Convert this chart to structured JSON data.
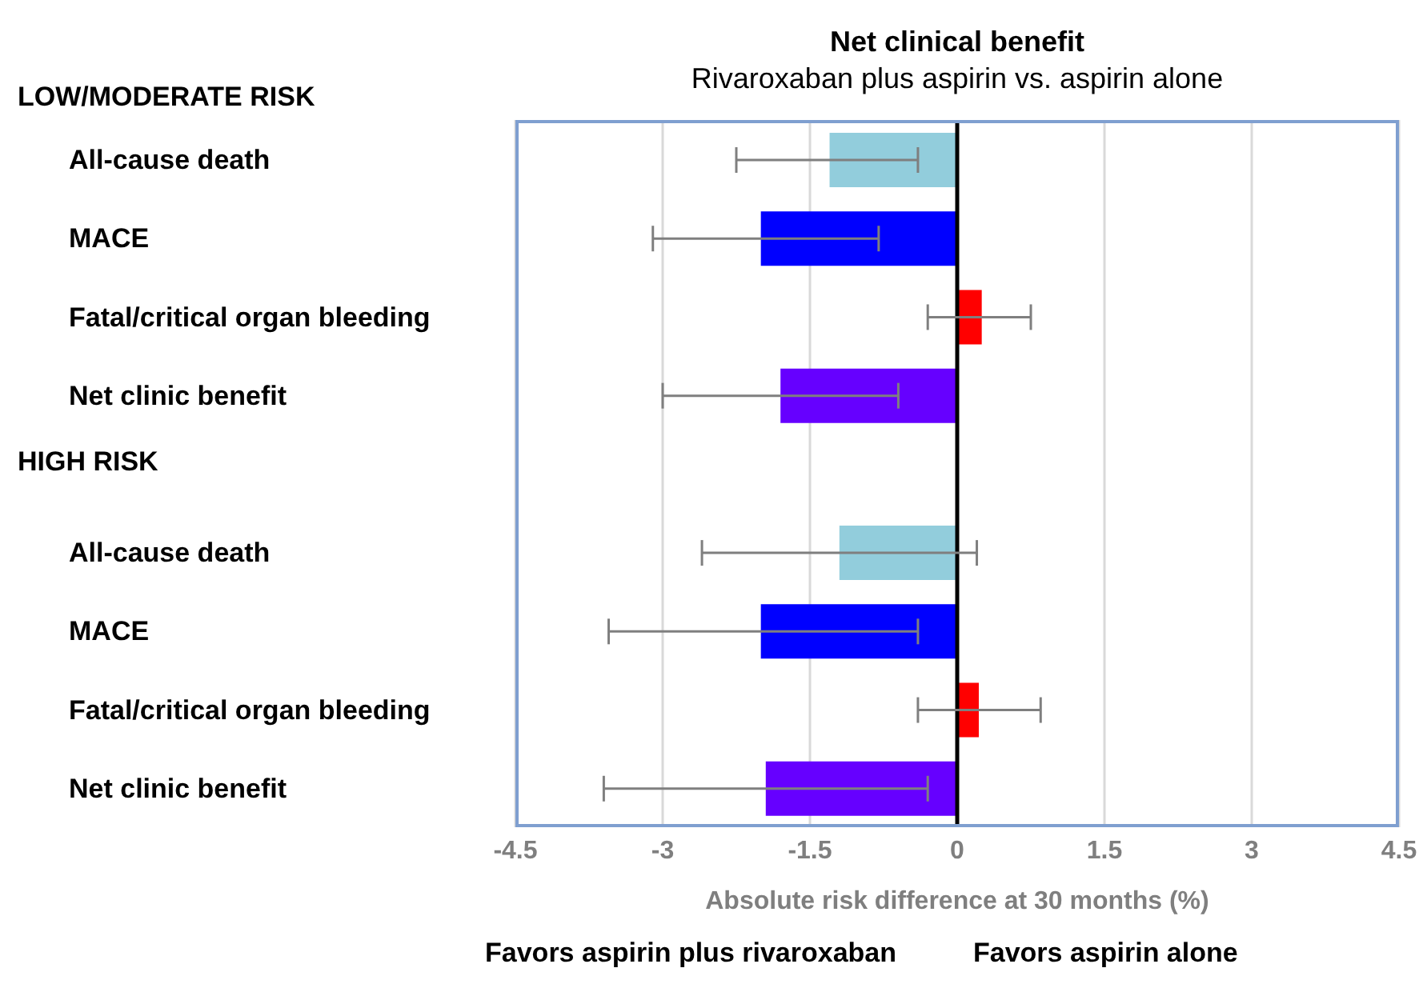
{
  "chart_data": {
    "type": "bar",
    "orientation": "horizontal",
    "title": "Net clinical benefit",
    "subtitle": "Rivaroxaban plus aspirin vs. aspirin alone",
    "xlabel": "Absolute risk difference at 30 months (%)",
    "categories": [
      "All-cause death",
      "MACE",
      "Fatal/critical organ bleeding",
      "Net clinic benefit",
      null,
      "All-cause death",
      "MACE",
      "Fatal/critical organ bleeding",
      "Net clinic benefit"
    ],
    "values": [
      -1.3,
      -2.0,
      0.25,
      -1.8,
      null,
      -1.2,
      -2.0,
      0.22,
      -1.95
    ],
    "errors": [
      [
        -2.25,
        -0.4
      ],
      [
        -3.1,
        -0.8
      ],
      [
        -0.3,
        0.75
      ],
      [
        -3.0,
        -0.6
      ],
      null,
      [
        -2.6,
        0.2
      ],
      [
        -3.55,
        -0.4
      ],
      [
        -0.4,
        0.85
      ],
      [
        -3.6,
        -0.3
      ]
    ],
    "colors": [
      "#92cddc",
      "#0000ff",
      "#ff0000",
      "#6600ff",
      null,
      "#92cddc",
      "#0000ff",
      "#ff0000",
      "#6600ff"
    ],
    "xlim": [
      -4.5,
      4.5
    ],
    "xticks": [
      -4.5,
      -3,
      -1.5,
      0,
      1.5,
      3,
      4.5
    ],
    "grid": "x",
    "legend": false,
    "ref_lines": [
      {
        "axis": "x",
        "value": 0,
        "color": "#000000"
      }
    ],
    "annotations": [
      "LOW/MODERATE RISK",
      "HIGH RISK",
      "Favors aspirin plus rivaroxaban",
      "Favors aspirin alone"
    ]
  }
}
